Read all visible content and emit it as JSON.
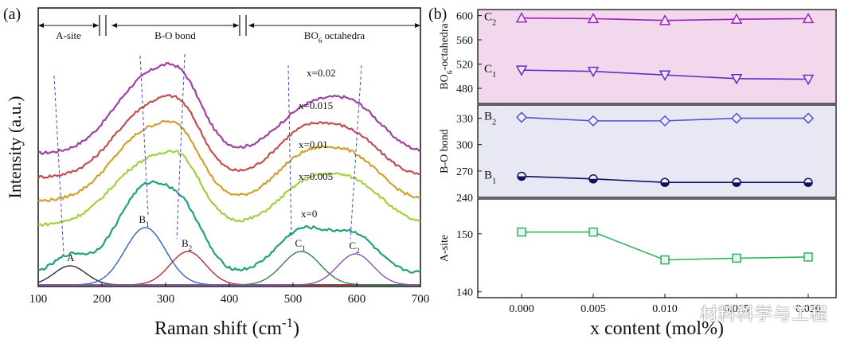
{
  "chart_data": [
    {
      "panel": "(a)",
      "type": "line",
      "xlabel_main": "Raman shift (cm",
      "xlabel_sup": "-1",
      "xlabel_end": ")",
      "ylabel": "Intensity (a.u.)",
      "xlim": [
        100,
        700
      ],
      "xticks": [
        "100",
        "200",
        "300",
        "400",
        "500",
        "600",
        "700"
      ],
      "regions": [
        {
          "label": "A-site",
          "from": 100,
          "to": 195
        },
        {
          "label": "B-O bond",
          "from": 215,
          "to": 415
        },
        {
          "label": "BO",
          "sub": "6",
          "label_end": " octahedra",
          "from": 430,
          "to": 700
        }
      ],
      "series": [
        {
          "name": "x=0.02",
          "color": "#a040a0",
          "offset": 6.0,
          "bands": [
            [
              275,
              3.2,
              55
            ],
            [
              330,
              1.4,
              30
            ],
            [
              515,
              1.6,
              45
            ],
            [
              595,
              1.9,
              45
            ]
          ]
        },
        {
          "name": "x=0.015",
          "color": "#c05050",
          "offset": 5.0,
          "bands": [
            [
              275,
              2.9,
              55
            ],
            [
              330,
              1.3,
              30
            ],
            [
              515,
              1.8,
              45
            ],
            [
              595,
              1.6,
              45
            ]
          ]
        },
        {
          "name": "x=0.01",
          "color": "#d0a030",
          "offset": 4.0,
          "bands": [
            [
              272,
              2.9,
              55
            ],
            [
              330,
              1.3,
              30
            ],
            [
              515,
              1.7,
              45
            ],
            [
              595,
              1.7,
              45
            ]
          ]
        },
        {
          "name": "x=0.005",
          "color": "#a0d040",
          "offset": 3.0,
          "bands": [
            [
              270,
              2.6,
              55
            ],
            [
              330,
              1.4,
              30
            ],
            [
              520,
              1.6,
              45
            ],
            [
              600,
              1.6,
              45
            ]
          ]
        },
        {
          "name": "x=0",
          "color": "#20a080",
          "offset": 1.0,
          "bands": [
            [
              150,
              0.7,
              25
            ],
            [
              270,
              3.6,
              45
            ],
            [
              335,
              1.6,
              30
            ],
            [
              515,
              1.8,
              40
            ],
            [
              598,
              1.5,
              35
            ]
          ]
        }
      ],
      "fit_peaks": [
        {
          "label": "A",
          "center": 150,
          "height": 0.8,
          "width": 25,
          "color": "#303030"
        },
        {
          "label": "B",
          "sub": "1",
          "center": 268,
          "height": 2.4,
          "width": 32,
          "color": "#3060c0"
        },
        {
          "label": "B",
          "sub": "2",
          "center": 335,
          "height": 1.4,
          "width": 28,
          "color": "#b03030"
        },
        {
          "label": "C",
          "sub": "1",
          "center": 513,
          "height": 1.4,
          "width": 30,
          "color": "#308050"
        },
        {
          "label": "C",
          "sub": "2",
          "center": 598,
          "height": 1.3,
          "width": 28,
          "color": "#9050b0"
        }
      ]
    },
    {
      "panel": "(b)",
      "type": "line",
      "xlabel": "x content (mol%)",
      "x": [
        0.0,
        0.005,
        0.01,
        0.015,
        0.02
      ],
      "xticks": [
        "0.000",
        "0.005",
        "0.010",
        "0.015",
        "0.020"
      ],
      "subplots": [
        {
          "ylabel": "BO",
          "ylabel_sub": "6",
          "ylabel_end": "-octahedra",
          "ylim": [
            455,
            610
          ],
          "yticks": [
            480,
            520,
            560,
            600
          ],
          "background": "#f1d8ec",
          "series": [
            {
              "name": "C",
              "sub": "2",
              "color": "#a020c0",
              "marker": "triangle-up",
              "values": [
                596,
                595,
                592,
                594,
                595
              ]
            },
            {
              "name": "C",
              "sub": "1",
              "color": "#6030c0",
              "marker": "triangle-down",
              "values": [
                510,
                508,
                502,
                496,
                495
              ]
            }
          ]
        },
        {
          "ylabel": "B-O bond",
          "ylim": [
            240,
            345
          ],
          "yticks": [
            240,
            270,
            300,
            330
          ],
          "background": "#e8e8f4",
          "series": [
            {
              "name": "B",
              "sub": "2",
              "color": "#5050d0",
              "marker": "diamond",
              "values": [
                331,
                327,
                327,
                330,
                330
              ]
            },
            {
              "name": "B",
              "sub": "1",
              "color": "#101060",
              "marker": "circle-half",
              "values": [
                264,
                261,
                257,
                257,
                257
              ]
            }
          ]
        },
        {
          "ylabel": "A-site",
          "ylim": [
            139,
            156
          ],
          "yticks": [
            140,
            150
          ],
          "background": "#ffffff",
          "series": [
            {
              "name": "",
              "color": "#30b060",
              "marker": "square",
              "values": [
                150.3,
                150.3,
                145.5,
                145.8,
                146.0
              ]
            }
          ]
        }
      ]
    }
  ],
  "watermark": "材料科学与工程"
}
